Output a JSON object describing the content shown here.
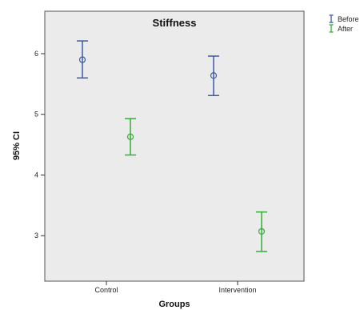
{
  "chart_data": {
    "type": "errorbar",
    "title": "Stiffness",
    "xlabel": "Groups",
    "ylabel": "95% CI",
    "categories": [
      "Control",
      "Intervention"
    ],
    "ylim": [
      2.25,
      6.7
    ],
    "yticks": [
      3,
      4,
      5,
      6
    ],
    "grid": false,
    "background": "#ebebeb",
    "legend_position": "outside-top-right",
    "series": [
      {
        "name": "Before",
        "color": "#3b5ba5",
        "points": [
          {
            "category": "Control",
            "mean": 5.9,
            "lower": 5.6,
            "upper": 6.21
          },
          {
            "category": "Intervention",
            "mean": 5.64,
            "lower": 5.31,
            "upper": 5.96
          }
        ]
      },
      {
        "name": "After",
        "color": "#33b033",
        "points": [
          {
            "category": "Control",
            "mean": 4.63,
            "lower": 4.33,
            "upper": 4.93
          },
          {
            "category": "Intervention",
            "mean": 3.07,
            "lower": 2.74,
            "upper": 3.39
          }
        ]
      }
    ]
  }
}
